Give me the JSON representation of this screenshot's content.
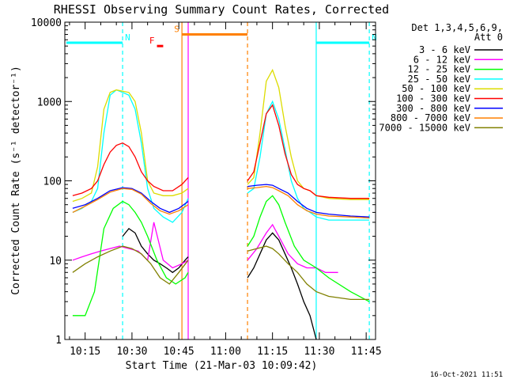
{
  "chart_data": {
    "type": "line",
    "title": "RHESSI Observing Summary Count Rates, Corrected",
    "xlabel": "Start Time (21-Mar-03 10:09:42)",
    "ylabel": "Corrected Count Rate (s⁻¹ detector⁻¹)",
    "x_ticks": [
      "10:15",
      "10:30",
      "10:45",
      "11:00",
      "11:15",
      "11:30",
      "11:45"
    ],
    "x_range_minutes": [
      10.0,
      11.8
    ],
    "y_scale": "log",
    "ylim": [
      1,
      10000
    ],
    "y_ticks": [
      "1",
      "10",
      "100",
      "1000",
      "10000"
    ],
    "timestamp": "16-Oct-2021 11:51",
    "legend": {
      "placement": "right-outside",
      "header_line1": "Det 1,3,4,5,6,9,",
      "header_line2": "Att 0",
      "entries": [
        {
          "label": "3 - 6 keV",
          "color": "#000000"
        },
        {
          "label": "6 - 12 keV",
          "color": "#ff00ff"
        },
        {
          "label": "12 - 25 keV",
          "color": "#00ff00"
        },
        {
          "label": "25 - 50 keV",
          "color": "#00ffff"
        },
        {
          "label": "50 - 100 keV",
          "color": "#dcdc00"
        },
        {
          "label": "100 - 300 keV",
          "color": "#ff0000"
        },
        {
          "label": "300 - 800 keV",
          "color": "#0000ff"
        },
        {
          "label": "800 - 7000 keV",
          "color": "#ff8000"
        },
        {
          "label": "7000 - 15000 keV",
          "color": "#808000"
        }
      ]
    },
    "annotations": [
      {
        "label": "N",
        "color": "#00ffff",
        "start": "10:09",
        "end": "10:27",
        "level": 5500
      },
      {
        "label": "N",
        "color": "#00ffff",
        "start": "11:29",
        "end": "11:46",
        "level": 5500
      },
      {
        "label": "S",
        "color": "#ff8000",
        "start": "10:46",
        "end": "11:07",
        "level": 7000
      },
      {
        "label": "F",
        "color": "#ff0000",
        "start": "10:38",
        "end": "10:40",
        "level": 5000
      }
    ],
    "vertical_markers": [
      {
        "time": "10:27",
        "color": "#00ffff",
        "style": "dashed"
      },
      {
        "time": "10:46",
        "color": "#ff8000",
        "style": "solid"
      },
      {
        "time": "10:48",
        "color": "#ff00ff",
        "style": "solid"
      },
      {
        "time": "11:07",
        "color": "#ff8000",
        "style": "dashed"
      },
      {
        "time": "11:29",
        "color": "#00ffff",
        "style": "solid"
      },
      {
        "time": "11:46",
        "color": "#00ffff",
        "style": "dashed"
      }
    ],
    "series": [
      {
        "name": "3 - 6 keV",
        "color": "#000000",
        "segments": [
          {
            "x": [
              "10:27",
              "10:29",
              "10:31",
              "10:33",
              "10:35",
              "10:37",
              "10:39",
              "10:41",
              "10:43",
              "10:45",
              "10:47",
              "10:48"
            ],
            "y": [
              20,
              25,
              22,
              15,
              12,
              10,
              9,
              8,
              7,
              8,
              10,
              11
            ]
          },
          {
            "x": [
              "11:07",
              "11:09",
              "11:11",
              "11:13",
              "11:15",
              "11:17",
              "11:19",
              "11:21",
              "11:23",
              "11:25",
              "11:27",
              "11:29"
            ],
            "y": [
              6,
              8,
              12,
              18,
              22,
              18,
              12,
              8,
              5,
              3,
              2,
              1
            ]
          }
        ]
      },
      {
        "name": "6 - 12 keV",
        "color": "#ff00ff",
        "segments": [
          {
            "x": [
              "10:11",
              "10:14",
              "10:17",
              "10:20",
              "10:23",
              "10:26",
              "10:29",
              "10:32",
              "10:35",
              "10:37",
              "10:40",
              "10:43",
              "10:46",
              "10:48"
            ],
            "y": [
              10,
              11,
              12,
              13,
              14,
              15,
              14,
              13,
              10,
              30,
              10,
              8,
              9,
              10
            ]
          },
          {
            "x": [
              "11:07",
              "11:10",
              "11:13",
              "11:15",
              "11:17",
              "11:20",
              "11:23",
              "11:26",
              "11:29",
              "11:32",
              "11:36"
            ],
            "y": [
              10,
              14,
              22,
              28,
              20,
              12,
              9,
              8,
              8,
              7,
              7
            ]
          }
        ]
      },
      {
        "name": "12 - 25 keV",
        "color": "#00ff00",
        "segments": [
          {
            "x": [
              "10:11",
              "10:15",
              "10:18",
              "10:21",
              "10:24",
              "10:27",
              "10:29",
              "10:31",
              "10:33",
              "10:35",
              "10:38",
              "10:41",
              "10:44",
              "10:47",
              "10:48"
            ],
            "y": [
              2,
              2,
              4,
              25,
              45,
              55,
              50,
              40,
              30,
              20,
              10,
              6,
              5,
              6,
              7
            ]
          },
          {
            "x": [
              "11:07",
              "11:09",
              "11:11",
              "11:13",
              "11:15",
              "11:17",
              "11:19",
              "11:22",
              "11:25",
              "11:29",
              "11:33",
              "11:40",
              "11:46"
            ],
            "y": [
              15,
              20,
              35,
              55,
              65,
              50,
              30,
              15,
              10,
              8,
              6,
              4,
              3
            ]
          }
        ]
      },
      {
        "name": "25 - 50 keV",
        "color": "#00ffff",
        "segments": [
          {
            "x": [
              "10:11",
              "10:14",
              "10:17",
              "10:19",
              "10:21",
              "10:23",
              "10:25",
              "10:27",
              "10:29",
              "10:31",
              "10:33",
              "10:35",
              "10:37",
              "10:40",
              "10:43",
              "10:46",
              "10:48"
            ],
            "y": [
              40,
              45,
              55,
              80,
              400,
              1200,
              1400,
              1300,
              1200,
              800,
              300,
              80,
              45,
              35,
              30,
              40,
              60
            ]
          },
          {
            "x": [
              "11:07",
              "11:09",
              "11:11",
              "11:13",
              "11:15",
              "11:17",
              "11:19",
              "11:21",
              "11:23",
              "11:25",
              "11:27",
              "11:29",
              "11:33",
              "11:40",
              "11:46"
            ],
            "y": [
              70,
              80,
              200,
              700,
              1000,
              600,
              250,
              100,
              60,
              45,
              40,
              35,
              32,
              32,
              32
            ]
          }
        ]
      },
      {
        "name": "50 - 100 keV",
        "color": "#dcdc00",
        "segments": [
          {
            "x": [
              "10:11",
              "10:14",
              "10:17",
              "10:19",
              "10:21",
              "10:23",
              "10:25",
              "10:27",
              "10:29",
              "10:31",
              "10:33",
              "10:35",
              "10:37",
              "10:40",
              "10:43",
              "10:46",
              "10:48"
            ],
            "y": [
              55,
              60,
              70,
              150,
              800,
              1300,
              1400,
              1350,
              1300,
              1000,
              400,
              100,
              70,
              65,
              65,
              70,
              80
            ]
          },
          {
            "x": [
              "11:07",
              "11:09",
              "11:11",
              "11:13",
              "11:15",
              "11:17",
              "11:19",
              "11:21",
              "11:23",
              "11:25",
              "11:27",
              "11:29",
              "11:33",
              "11:40",
              "11:46"
            ],
            "y": [
              90,
              110,
              400,
              1800,
              2500,
              1500,
              500,
              200,
              100,
              80,
              75,
              65,
              60,
              58,
              58
            ]
          }
        ]
      },
      {
        "name": "100 - 300 keV",
        "color": "#ff0000",
        "segments": [
          {
            "x": [
              "10:11",
              "10:14",
              "10:17",
              "10:19",
              "10:21",
              "10:23",
              "10:25",
              "10:27",
              "10:29",
              "10:31",
              "10:33",
              "10:35",
              "10:37",
              "10:40",
              "10:43",
              "10:46",
              "10:48"
            ],
            "y": [
              65,
              70,
              80,
              100,
              160,
              230,
              280,
              300,
              270,
              200,
              130,
              100,
              85,
              75,
              75,
              90,
              110
            ]
          },
          {
            "x": [
              "11:07",
              "11:09",
              "11:11",
              "11:13",
              "11:15",
              "11:17",
              "11:19",
              "11:21",
              "11:23",
              "11:25",
              "11:27",
              "11:29",
              "11:33",
              "11:40",
              "11:46"
            ],
            "y": [
              100,
              130,
              300,
              700,
              900,
              500,
              220,
              120,
              90,
              80,
              75,
              65,
              62,
              60,
              60
            ]
          }
        ]
      },
      {
        "name": "300 - 800 keV",
        "color": "#0000ff",
        "segments": [
          {
            "x": [
              "10:11",
              "10:15",
              "10:19",
              "10:23",
              "10:27",
              "10:30",
              "10:33",
              "10:36",
              "10:39",
              "10:42",
              "10:45",
              "10:48"
            ],
            "y": [
              45,
              50,
              60,
              75,
              82,
              80,
              70,
              55,
              45,
              40,
              45,
              55
            ]
          },
          {
            "x": [
              "11:07",
              "11:10",
              "11:13",
              "11:15",
              "11:17",
              "11:20",
              "11:23",
              "11:26",
              "11:29",
              "11:33",
              "11:40",
              "11:46"
            ],
            "y": [
              85,
              88,
              90,
              88,
              80,
              70,
              55,
              45,
              40,
              38,
              36,
              35
            ]
          }
        ]
      },
      {
        "name": "800 - 7000 keV",
        "color": "#ff8000",
        "segments": [
          {
            "x": [
              "10:11",
              "10:15",
              "10:19",
              "10:23",
              "10:27",
              "10:30",
              "10:33",
              "10:36",
              "10:39",
              "10:42",
              "10:45",
              "10:48"
            ],
            "y": [
              40,
              48,
              58,
              72,
              80,
              78,
              68,
              52,
              42,
              38,
              42,
              50
            ]
          },
          {
            "x": [
              "11:07",
              "11:10",
              "11:13",
              "11:15",
              "11:17",
              "11:20",
              "11:23",
              "11:26",
              "11:29",
              "11:33",
              "11:40",
              "11:46"
            ],
            "y": [
              80,
              82,
              85,
              82,
              75,
              65,
              50,
              42,
              38,
              36,
              35,
              34
            ]
          }
        ]
      },
      {
        "name": "7000 - 15000 keV",
        "color": "#808000",
        "segments": [
          {
            "x": [
              "10:11",
              "10:15",
              "10:19",
              "10:23",
              "10:27",
              "10:30",
              "10:33",
              "10:36",
              "10:39",
              "10:42",
              "10:45",
              "10:48"
            ],
            "y": [
              7,
              9,
              11,
              13,
              15,
              14,
              12,
              9,
              6,
              5,
              7,
              10
            ]
          },
          {
            "x": [
              "11:07",
              "11:10",
              "11:13",
              "11:15",
              "11:17",
              "11:20",
              "11:23",
              "11:26",
              "11:29",
              "11:33",
              "11:40",
              "11:46"
            ],
            "y": [
              13,
              14,
              15,
              14,
              12,
              9,
              7,
              5,
              4,
              3.5,
              3.2,
              3.2
            ]
          }
        ]
      }
    ]
  }
}
